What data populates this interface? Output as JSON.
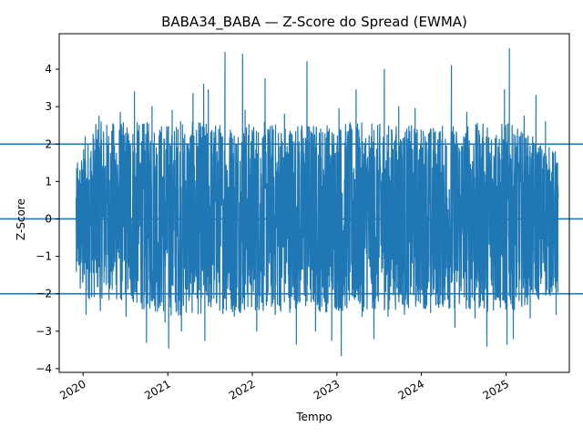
{
  "chart_data": {
    "type": "line",
    "title": "BABA34_BABA — Z-Score do Spread (EWMA)",
    "xlabel": "Tempo",
    "ylabel": "Z-Score",
    "xlim": [
      "2019-09-20",
      "2025-10-01"
    ],
    "ylim": [
      -4.1,
      4.95
    ],
    "x_ticks": [
      "2020",
      "2021",
      "2022",
      "2023",
      "2024",
      "2025"
    ],
    "y_ticks": [
      -4,
      -3,
      -2,
      -1,
      0,
      1,
      2,
      3,
      4
    ],
    "hlines": [
      2,
      0,
      -2
    ],
    "grid": false,
    "line_color": "#1f77b4",
    "series": [
      {
        "x_start": "2019-12-02",
        "x_end": "2025-08-15",
        "spikes": [
          [
            "2019-12-03",
            -1.4
          ],
          [
            "2019-12-08",
            1.5
          ],
          [
            "2019-12-20",
            -1.85
          ],
          [
            "2020-01-10",
            2.2
          ],
          [
            "2020-01-14",
            -2.55
          ],
          [
            "2020-03-10",
            2.75
          ],
          [
            "2020-03-16",
            -2.45
          ],
          [
            "2020-06-10",
            2.85
          ],
          [
            "2020-07-05",
            -2.6
          ],
          [
            "2020-08-10",
            3.4
          ],
          [
            "2020-09-20",
            -2.4
          ],
          [
            "2020-10-01",
            -3.3
          ],
          [
            "2020-10-25",
            3.0
          ],
          [
            "2020-12-20",
            -2.75
          ],
          [
            "2021-01-05",
            -3.45
          ],
          [
            "2021-01-20",
            2.9
          ],
          [
            "2021-02-25",
            2.6
          ],
          [
            "2021-03-01",
            -3.0
          ],
          [
            "2021-04-20",
            3.35
          ],
          [
            "2021-06-05",
            3.6
          ],
          [
            "2021-06-10",
            -3.25
          ],
          [
            "2021-06-25",
            3.45
          ],
          [
            "2021-09-05",
            4.45
          ],
          [
            "2021-10-15",
            -2.6
          ],
          [
            "2021-11-20",
            4.4
          ],
          [
            "2021-12-01",
            2.9
          ],
          [
            "2022-01-20",
            -3.0
          ],
          [
            "2022-02-25",
            3.75
          ],
          [
            "2022-04-10",
            -2.55
          ],
          [
            "2022-05-20",
            2.8
          ],
          [
            "2022-07-10",
            -3.35
          ],
          [
            "2022-08-25",
            4.2
          ],
          [
            "2022-10-01",
            -3.0
          ],
          [
            "2022-12-10",
            -3.25
          ],
          [
            "2023-01-10",
            2.95
          ],
          [
            "2023-01-20",
            -3.65
          ],
          [
            "2023-03-25",
            3.45
          ],
          [
            "2023-04-20",
            -2.6
          ],
          [
            "2023-06-10",
            -3.2
          ],
          [
            "2023-07-25",
            4.0
          ],
          [
            "2023-08-10",
            -2.6
          ],
          [
            "2023-09-25",
            3.0
          ],
          [
            "2023-10-20",
            -2.55
          ],
          [
            "2023-12-05",
            2.95
          ],
          [
            "2024-02-10",
            -2.5
          ],
          [
            "2024-05-10",
            4.1
          ],
          [
            "2024-05-25",
            -2.9
          ],
          [
            "2024-07-15",
            2.85
          ],
          [
            "2024-08-20",
            -2.65
          ],
          [
            "2024-10-10",
            -3.4
          ],
          [
            "2024-11-15",
            2.15
          ],
          [
            "2024-12-25",
            3.45
          ],
          [
            "2025-01-05",
            -3.35
          ],
          [
            "2025-01-15",
            4.55
          ],
          [
            "2025-02-01",
            -3.2
          ],
          [
            "2025-03-20",
            2.75
          ],
          [
            "2025-04-15",
            -2.65
          ],
          [
            "2025-05-10",
            3.3
          ],
          [
            "2025-06-20",
            2.6
          ],
          [
            "2025-08-05",
            -2.55
          ],
          [
            "2025-08-12",
            -1.95
          ]
        ],
        "envelope": [
          [
            "2019-12-02",
            -1.35,
            1.3
          ],
          [
            "2020-01-01",
            -2.2,
            1.9
          ],
          [
            "2020-03-01",
            -2.1,
            2.6
          ],
          [
            "2020-07-01",
            -2.3,
            2.6
          ],
          [
            "2021-01-01",
            -2.6,
            2.6
          ],
          [
            "2022-01-01",
            -2.5,
            2.6
          ],
          [
            "2023-01-01",
            -2.5,
            2.6
          ],
          [
            "2024-01-01",
            -2.4,
            2.5
          ],
          [
            "2025-01-01",
            -2.5,
            2.6
          ],
          [
            "2025-08-15",
            -2.0,
            1.8
          ]
        ]
      }
    ]
  }
}
